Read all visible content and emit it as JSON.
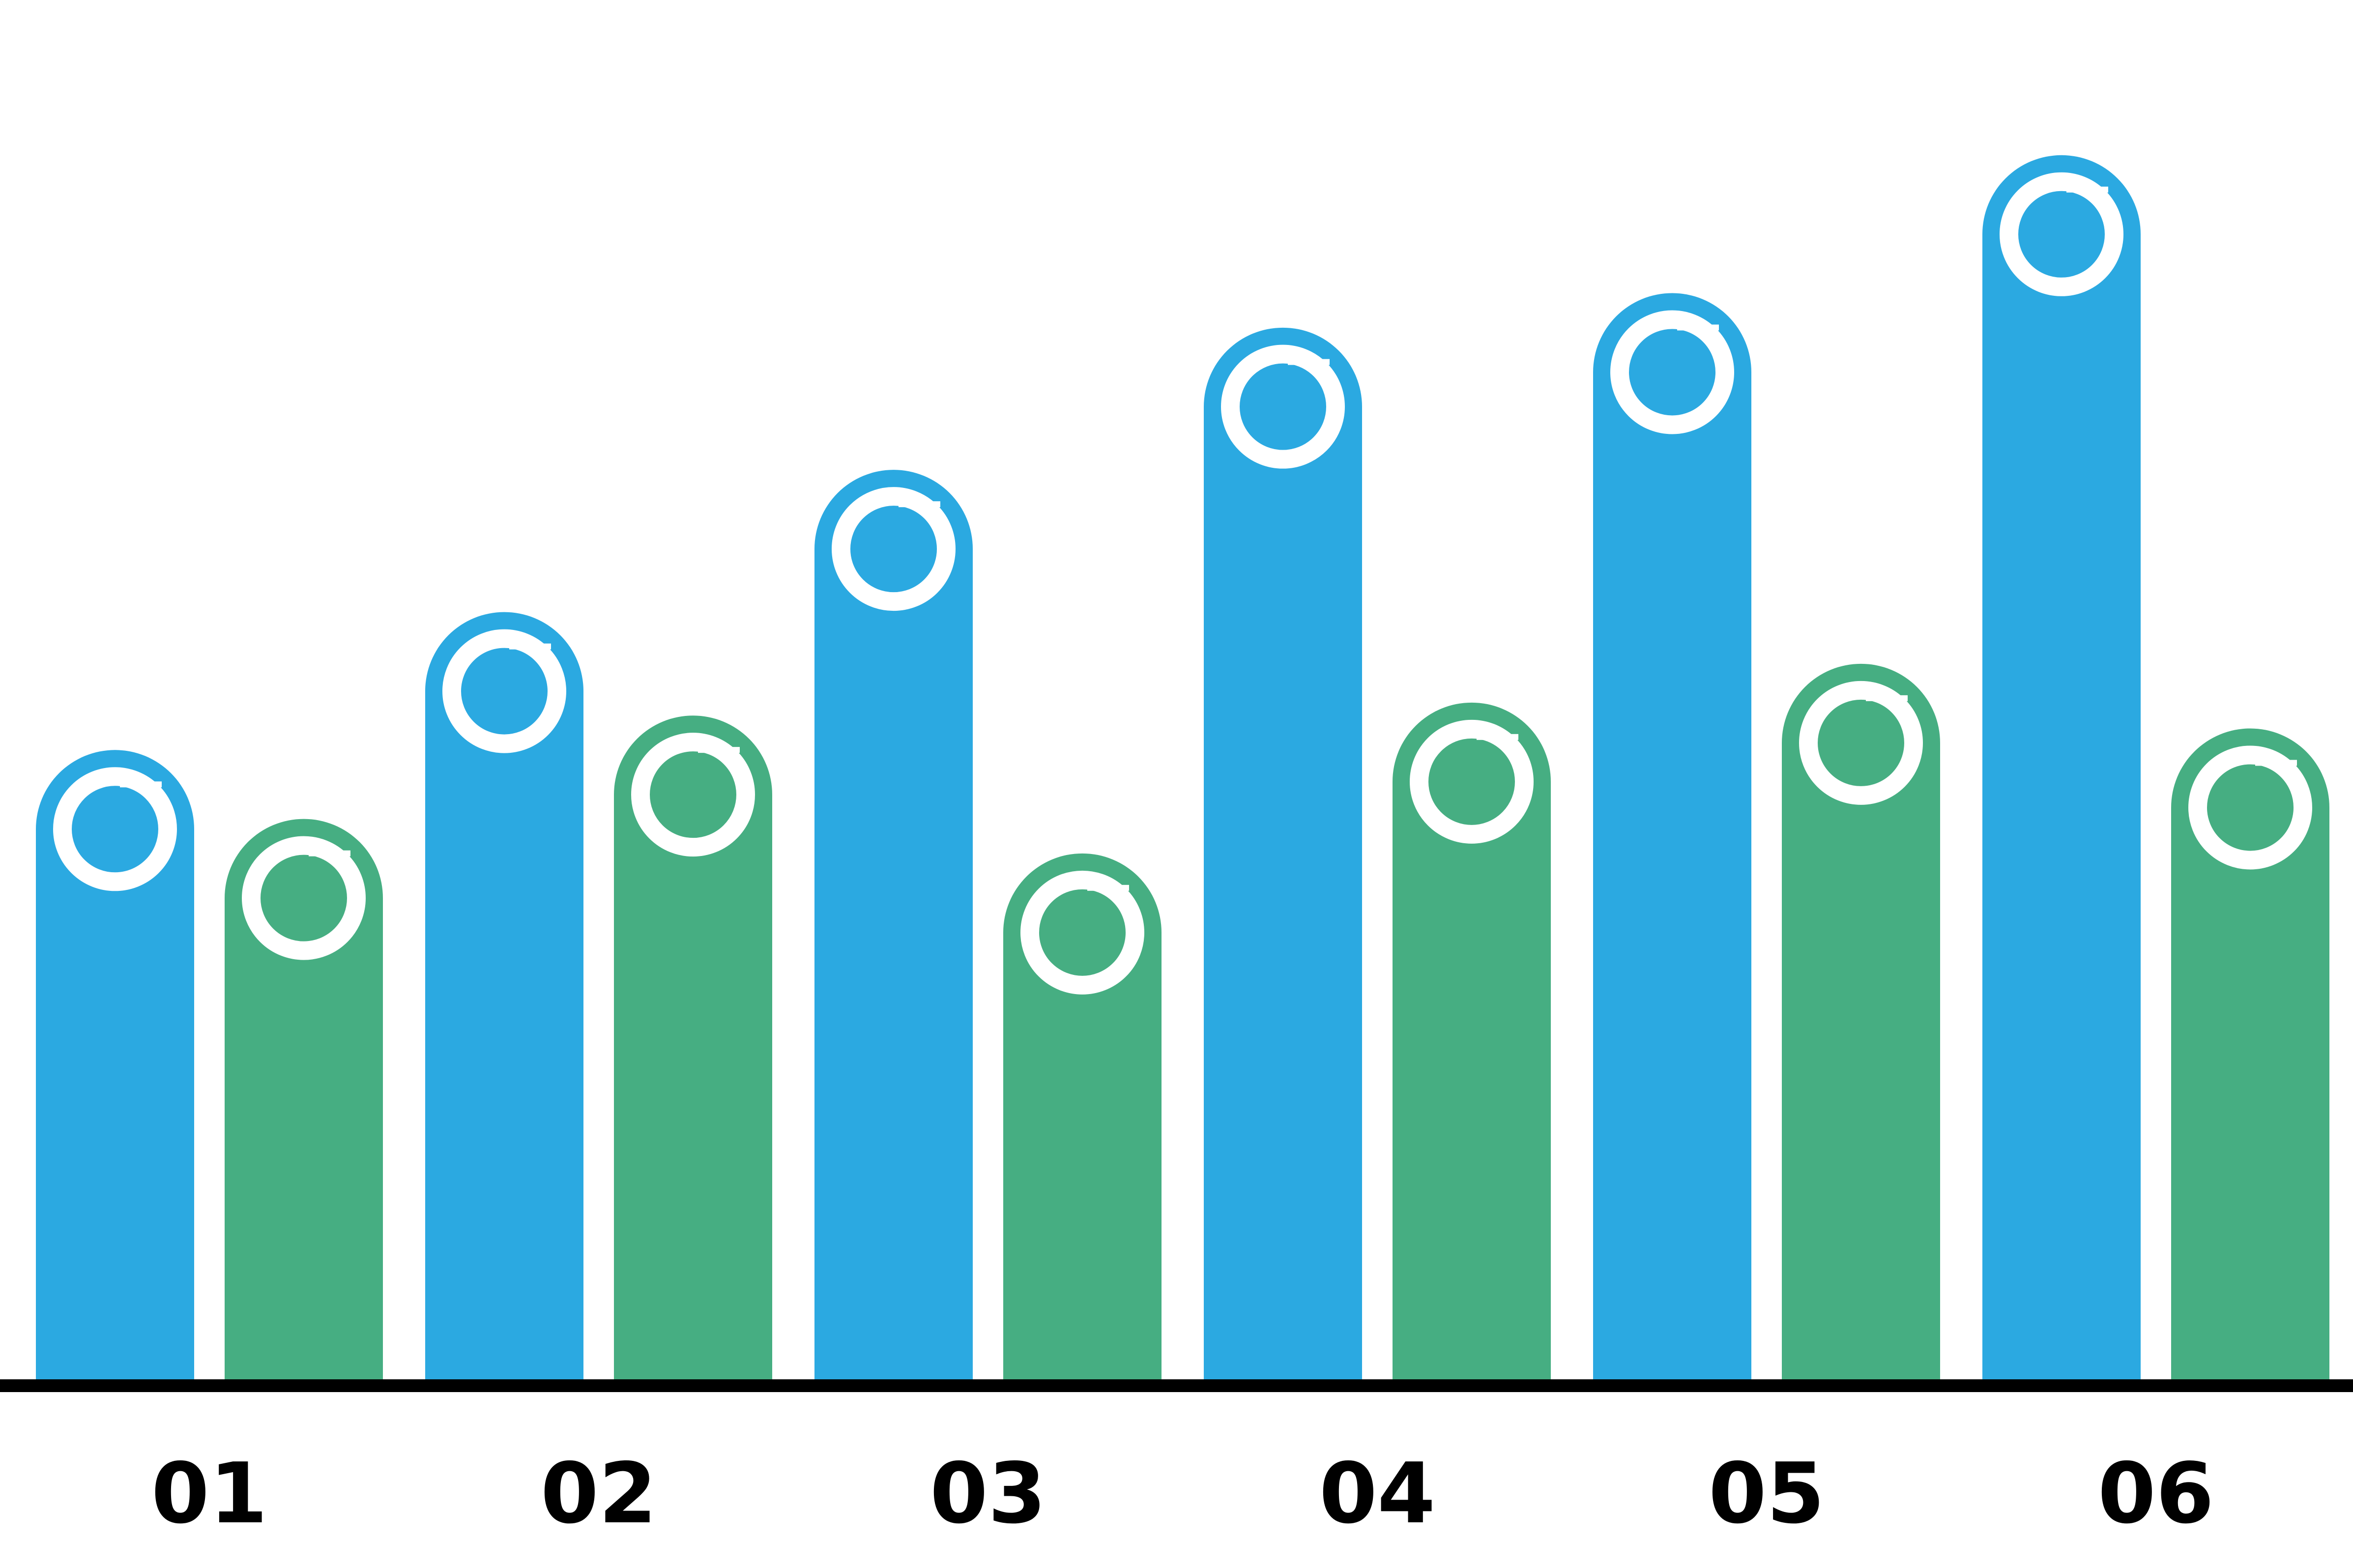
{
  "chart_data": {
    "type": "bar",
    "categories": [
      "01",
      "02",
      "03",
      "04",
      "05",
      "06"
    ],
    "series": [
      {
        "values": [
          14.6,
          17.8,
          21.1,
          24.4,
          25.2,
          28.4
        ],
        "color": "#2BA9E1"
      },
      {
        "values": [
          13.0,
          15.4,
          12.2,
          15.7,
          16.6,
          15.1
        ],
        "color": "#46AE82"
      }
    ],
    "ylim": [
      0,
      32
    ],
    "grid": false,
    "legend": "none",
    "marker_icon": "ring-icon",
    "baseline_color": "#000000"
  }
}
